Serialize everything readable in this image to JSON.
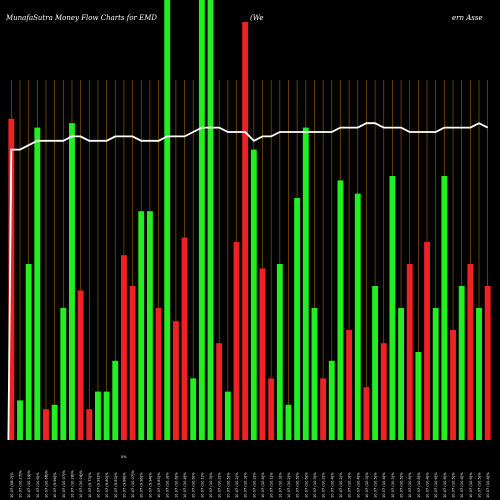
{
  "chart_data": {
    "type": "bar",
    "title_left": "MunafaSutra  Money Flow  Charts for EMD",
    "title_mid": "(We",
    "title_right": "ern  Asse",
    "stray_label": "0%",
    "ylim": [
      0,
      100
    ],
    "grid": "vertical",
    "colors": {
      "background": "#000000",
      "grid": "#8a5a00",
      "up": "#22ee22",
      "down": "#ee2222",
      "line": "#ffffff",
      "text": "#ffffff"
    },
    "categories": [
      "10.07 (08:7)%",
      "10.07 (10.27)%",
      "10.07 (10.14)%",
      "10.07 (10.6)%",
      "10.07 (10.66)%",
      "10.07 (9.94)%",
      "10.07 (10.07)%",
      "10.07 (10.28)%",
      "10.07 (10.04)%",
      "10.07 (9.73)%",
      "10.07 (9.91)%",
      "10.07 (9.80)%",
      "10.07 (9.83)%",
      "10.07 (9.88)%",
      "10.07 (10.07)%",
      "10.07 (9.96)%",
      "10.07 (9.94)%",
      "10.07 (9.83)%",
      "10.07 (10.3)%",
      "10.07 (10.6)%",
      "10.07 (10.4)%",
      "10.07 (10.6)%",
      "10.07 (10.1)%",
      "10.07 (10.3)%",
      "10.07 (10.2)%",
      "10.07 (10.5)%",
      "10.07 (10.2)%",
      "10.07 (10.3)%",
      "10.07 (10.2)%",
      "10.07 (10.4)%",
      "10.07 (10.1)%",
      "10.07 (10.3)%",
      "10.07 (10.2)%",
      "10.07 (10.5)%",
      "10.07 (10.6)%",
      "10.07 (10.3)%",
      "10.07 (10.2)%",
      "10.07 (10.4)%",
      "10.07 (10.2)%",
      "10.07 (10.3)%",
      "10.07 (10.4)%",
      "10.07 (10.3)%",
      "10.07 (10.5)%",
      "10.07 (10.4)%",
      "10.07 (10.3)%",
      "10.07 (10.5)%",
      "10.07 (10.6)%",
      "10.07 (10.5)%",
      "10.07 (10.4)%",
      "10.07 (10.6)%",
      "10.07 (10.6)%",
      "10.07 (10.5)%",
      "10.07 (10.4)%",
      "10.07 (10.6)%",
      "10.07 (10.5)%",
      "10.07 (10.4)%"
    ],
    "values": [
      73,
      9,
      40,
      71,
      7,
      8,
      30,
      72,
      34,
      7,
      11,
      11,
      18,
      42,
      35,
      52,
      52,
      30,
      100,
      27,
      46,
      14,
      100,
      100,
      22,
      11,
      45,
      95,
      66,
      39,
      14,
      40,
      8,
      55,
      71,
      30,
      14,
      18,
      59,
      25,
      56,
      12,
      35,
      22,
      60,
      30,
      40,
      20,
      45,
      30,
      60,
      25,
      35,
      40,
      30,
      35
    ],
    "bar_colors": [
      "red",
      "green",
      "green",
      "green",
      "red",
      "green",
      "green",
      "green",
      "red",
      "red",
      "green",
      "green",
      "green",
      "red",
      "red",
      "green",
      "green",
      "red",
      "green",
      "red",
      "red",
      "green",
      "green",
      "green",
      "red",
      "green",
      "red",
      "red",
      "green",
      "red",
      "red",
      "green",
      "green",
      "green",
      "green",
      "green",
      "red",
      "green",
      "green",
      "red",
      "green",
      "red",
      "green",
      "red",
      "green",
      "green",
      "red",
      "green",
      "red",
      "green",
      "green",
      "red",
      "green",
      "red",
      "green",
      "red"
    ],
    "line": [
      66,
      66,
      67,
      68,
      68,
      68,
      68,
      69,
      69,
      68,
      68,
      68,
      69,
      69,
      69,
      68,
      68,
      68,
      69,
      69,
      69,
      70,
      71,
      71,
      71,
      70,
      70,
      70,
      68,
      69,
      69,
      70,
      70,
      70,
      70,
      70,
      70,
      70,
      71,
      71,
      71,
      72,
      72,
      71,
      71,
      71,
      70,
      70,
      70,
      70,
      71,
      71,
      71,
      71,
      72,
      71
    ]
  }
}
